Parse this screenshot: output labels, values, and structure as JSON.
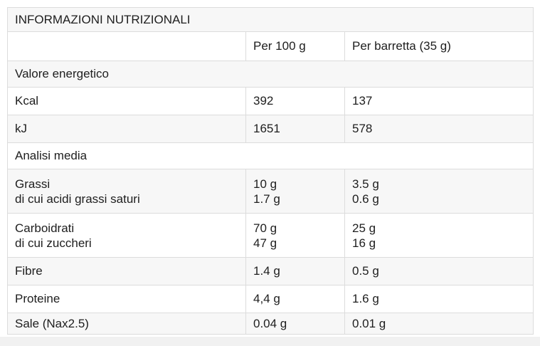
{
  "table": {
    "title": "INFORMAZIONI NUTRIZIONALI",
    "columns": {
      "label": "",
      "per100g": "Per 100 g",
      "perBar": "Per barretta (35 g)"
    },
    "sections": {
      "energy": "Valore energetico",
      "analysis": "Analisi media"
    },
    "rows": {
      "kcal": {
        "label": "Kcal",
        "per100g": "392",
        "perBar": "137"
      },
      "kj": {
        "label": "kJ",
        "per100g": "1651",
        "perBar": "578"
      },
      "fats": {
        "label": "Grassi",
        "sublabel": "di cui acidi grassi saturi",
        "per100g": "10 g",
        "per100g_sub": "1.7 g",
        "perBar": "3.5 g",
        "perBar_sub": "0.6 g"
      },
      "carbs": {
        "label": "Carboidrati",
        "sublabel": "di cui zuccheri",
        "per100g": "70 g",
        "per100g_sub": "47 g",
        "perBar": "25 g",
        "perBar_sub": "16 g"
      },
      "fiber": {
        "label": "Fibre",
        "per100g": "1.4 g",
        "perBar": "0.5 g"
      },
      "protein": {
        "label": "Proteine",
        "per100g": "4,4 g",
        "perBar": "1.6 g"
      },
      "salt": {
        "label": "Sale (Nax2.5)",
        "per100g": "0.04 g",
        "perBar": "0.01 g"
      }
    },
    "colors": {
      "stripe_row": "#f7f7f7",
      "border": "#dcdcdc",
      "text": "#1e1e1e",
      "page_bottom_strip": "#f1f1f1"
    }
  }
}
